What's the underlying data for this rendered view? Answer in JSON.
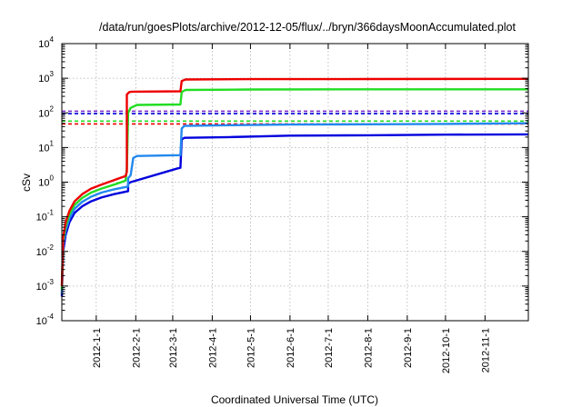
{
  "chart_data": {
    "type": "line",
    "title": "/data/run/goesPlots/archive/2012-12-05/flux/../bryn/366daysMoonAccumulated.plot",
    "xlabel": "Coordinated Universal Time (UTC)",
    "ylabel": "cSv",
    "y_scale": "log",
    "xlim": [
      "2011-12-05",
      "2012-12-05"
    ],
    "ylim": [
      0.0001,
      10000
    ],
    "grid": true,
    "x_ticks": [
      {
        "date": "2012-01-01",
        "label": "2012-1-1"
      },
      {
        "date": "2012-02-01",
        "label": "2012-2-1"
      },
      {
        "date": "2012-03-01",
        "label": "2012-3-1"
      },
      {
        "date": "2012-04-01",
        "label": "2012-4-1"
      },
      {
        "date": "2012-05-01",
        "label": "2012-5-1"
      },
      {
        "date": "2012-06-01",
        "label": "2012-6-1"
      },
      {
        "date": "2012-07-01",
        "label": "2012-7-1"
      },
      {
        "date": "2012-08-01",
        "label": "2012-8-1"
      },
      {
        "date": "2012-09-01",
        "label": "2012-9-1"
      },
      {
        "date": "2012-10-01",
        "label": "2012-10-1"
      },
      {
        "date": "2012-11-01",
        "label": "2012-11-1"
      }
    ],
    "y_ticks": [
      {
        "value": 0.0001,
        "base": "10",
        "exp": "-4"
      },
      {
        "value": 0.001,
        "base": "10",
        "exp": "-3"
      },
      {
        "value": 0.01,
        "base": "10",
        "exp": "-2"
      },
      {
        "value": 0.1,
        "base": "10",
        "exp": "-1"
      },
      {
        "value": 1,
        "base": "10",
        "exp": "0"
      },
      {
        "value": 10,
        "base": "10",
        "exp": "1"
      },
      {
        "value": 100,
        "base": "10",
        "exp": "2"
      },
      {
        "value": 1000,
        "base": "10",
        "exp": "3"
      },
      {
        "value": 10000,
        "base": "10",
        "exp": "4"
      }
    ],
    "series": [
      {
        "color": "#0000dd",
        "points": [
          [
            "2011-12-05",
            0.0005
          ],
          [
            "2011-12-06",
            0.01
          ],
          [
            "2011-12-08",
            0.03
          ],
          [
            "2011-12-11",
            0.07
          ],
          [
            "2011-12-15",
            0.13
          ],
          [
            "2011-12-21",
            0.2
          ],
          [
            "2011-12-28",
            0.28
          ],
          [
            "2012-01-05",
            0.36
          ],
          [
            "2012-01-15",
            0.45
          ],
          [
            "2012-01-26",
            0.55
          ],
          [
            "2012-01-26",
            0.9
          ],
          [
            "2012-01-28",
            1.0
          ],
          [
            "2012-03-05",
            2.5
          ],
          [
            "2012-03-07",
            2.6
          ],
          [
            "2012-03-08",
            17
          ],
          [
            "2012-03-10",
            19
          ],
          [
            "2012-04-15",
            20
          ],
          [
            "2012-06-01",
            22
          ],
          [
            "2012-08-01",
            22.5
          ],
          [
            "2012-10-01",
            23.5
          ],
          [
            "2012-12-05",
            24
          ]
        ]
      },
      {
        "color": "#2288ee",
        "points": [
          [
            "2011-12-05",
            0.0006
          ],
          [
            "2011-12-06",
            0.015
          ],
          [
            "2011-12-08",
            0.04
          ],
          [
            "2011-12-11",
            0.09
          ],
          [
            "2011-12-15",
            0.17
          ],
          [
            "2011-12-21",
            0.27
          ],
          [
            "2011-12-28",
            0.38
          ],
          [
            "2012-01-05",
            0.5
          ],
          [
            "2012-01-15",
            0.62
          ],
          [
            "2012-01-26",
            0.75
          ],
          [
            "2012-01-26",
            1.3
          ],
          [
            "2012-01-28",
            1.6
          ],
          [
            "2012-01-30",
            5
          ],
          [
            "2012-02-02",
            5.7
          ],
          [
            "2012-03-07",
            6
          ],
          [
            "2012-03-08",
            35
          ],
          [
            "2012-03-10",
            42
          ],
          [
            "2012-04-15",
            44
          ],
          [
            "2012-06-01",
            46
          ],
          [
            "2012-08-01",
            47
          ],
          [
            "2012-10-01",
            48
          ],
          [
            "2012-12-05",
            50
          ]
        ]
      },
      {
        "color": "#22dd22",
        "points": [
          [
            "2011-12-05",
            0.0008
          ],
          [
            "2011-12-06",
            0.02
          ],
          [
            "2011-12-08",
            0.055
          ],
          [
            "2011-12-11",
            0.12
          ],
          [
            "2011-12-15",
            0.22
          ],
          [
            "2011-12-21",
            0.35
          ],
          [
            "2011-12-28",
            0.5
          ],
          [
            "2012-01-05",
            0.65
          ],
          [
            "2012-01-15",
            0.85
          ],
          [
            "2012-01-24",
            1.1
          ],
          [
            "2012-01-25",
            2.5
          ],
          [
            "2012-01-26",
            100
          ],
          [
            "2012-01-28",
            140
          ],
          [
            "2012-02-02",
            170
          ],
          [
            "2012-03-07",
            175
          ],
          [
            "2012-03-08",
            400
          ],
          [
            "2012-03-11",
            460
          ],
          [
            "2012-05-01",
            475
          ],
          [
            "2012-08-01",
            480
          ],
          [
            "2012-12-05",
            480
          ]
        ]
      },
      {
        "color": "#ee0000",
        "points": [
          [
            "2011-12-05",
            0.001
          ],
          [
            "2011-12-06",
            0.025
          ],
          [
            "2011-12-08",
            0.07
          ],
          [
            "2011-12-11",
            0.15
          ],
          [
            "2011-12-15",
            0.28
          ],
          [
            "2011-12-21",
            0.45
          ],
          [
            "2011-12-28",
            0.65
          ],
          [
            "2012-01-05",
            0.85
          ],
          [
            "2012-01-15",
            1.15
          ],
          [
            "2012-01-24",
            1.5
          ],
          [
            "2012-01-25",
            2.0
          ],
          [
            "2012-01-25",
            340
          ],
          [
            "2012-01-27",
            400
          ],
          [
            "2012-01-29",
            410
          ],
          [
            "2012-03-07",
            420
          ],
          [
            "2012-03-08",
            830
          ],
          [
            "2012-03-11",
            920
          ],
          [
            "2012-05-01",
            940
          ],
          [
            "2012-08-01",
            950
          ],
          [
            "2012-12-05",
            960
          ]
        ]
      }
    ],
    "reference_lines": [
      {
        "color": "#7722cc",
        "value": 112
      },
      {
        "color": "#0000dd",
        "value": 95
      },
      {
        "color": "#22dd22",
        "value": 58
      },
      {
        "color": "#ee0000",
        "value": 48
      }
    ]
  }
}
